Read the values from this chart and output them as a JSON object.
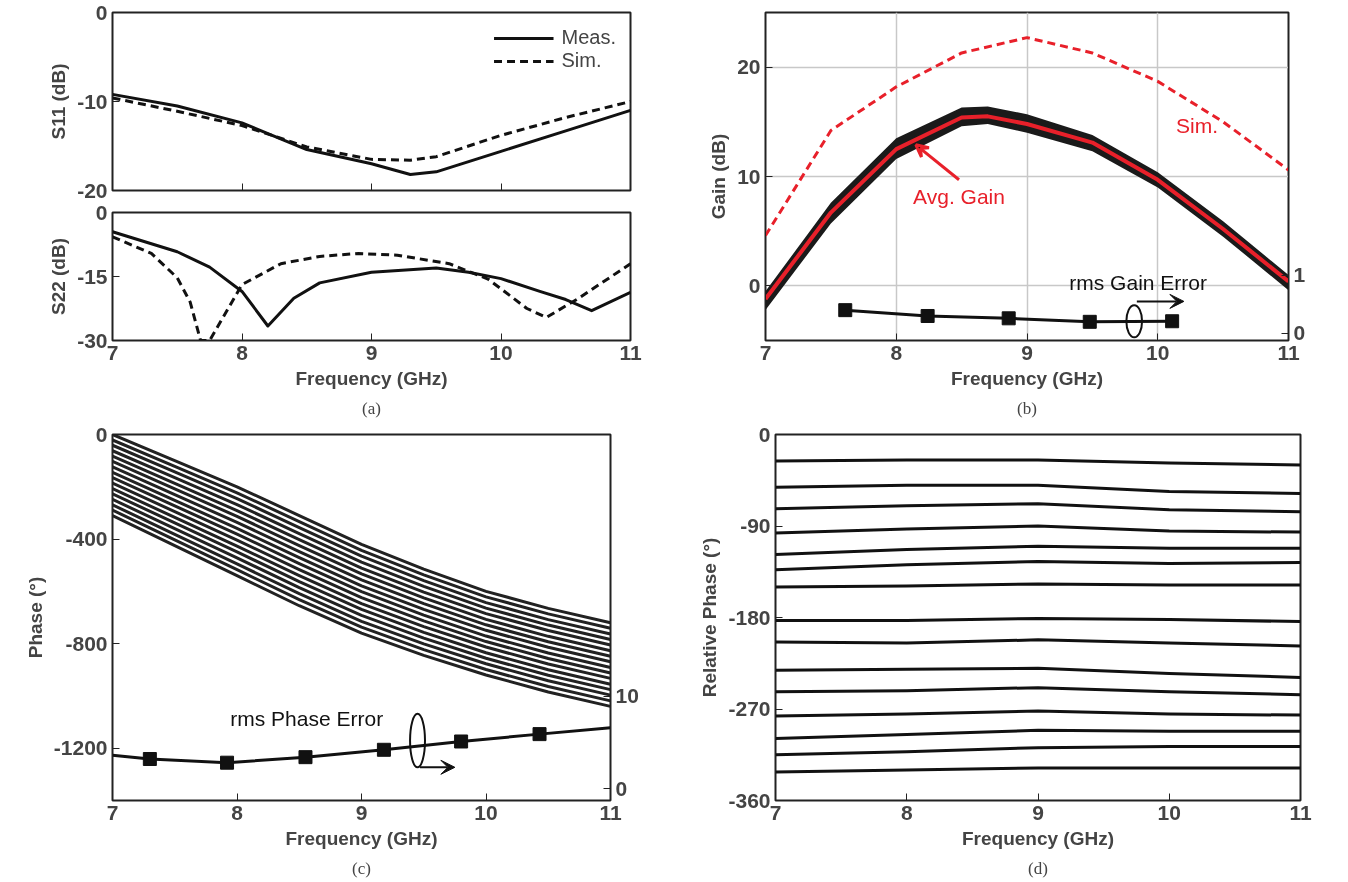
{
  "chart_data": [
    {
      "type": "line",
      "ylabel": "S11 (dB)",
      "xlim": [
        7,
        11
      ],
      "xticks": [
        7,
        8,
        9,
        10,
        11
      ],
      "ylim": [
        -20,
        0
      ],
      "yticks": [
        -20,
        -10,
        0
      ],
      "tick_labels": "y",
      "legend": "top right",
      "grid": false,
      "series": [
        {
          "name": "Meas.",
          "color": "#111111",
          "line_style": "solid",
          "x": [
            7,
            7.5,
            8,
            8.5,
            9,
            9.3,
            9.5,
            10,
            10.5,
            11
          ],
          "values": [
            -9.2,
            -10.5,
            -12.4,
            -15.4,
            -17.0,
            -18.2,
            -17.9,
            -15.6,
            -13.3,
            -11.0
          ]
        },
        {
          "name": "Sim.",
          "color": "#111111",
          "line_style": "dashed",
          "x": [
            7,
            7.5,
            8,
            8.5,
            9,
            9.3,
            9.5,
            10,
            10.5,
            11
          ],
          "values": [
            -9.6,
            -11.1,
            -12.7,
            -15.1,
            -16.5,
            -16.6,
            -16.2,
            -13.8,
            -11.8,
            -10.0
          ]
        }
      ]
    },
    {
      "type": "line",
      "xlabel": "Frequency (GHz)",
      "ylabel": "S22 (dB)",
      "xlim": [
        7,
        11
      ],
      "xticks": [
        7,
        8,
        9,
        10,
        11
      ],
      "ylim": [
        -30,
        0
      ],
      "yticks": [
        -30,
        -15,
        0
      ],
      "grid": false,
      "annotations": [
        "(a)"
      ],
      "series": [
        {
          "color": "#111111",
          "line_style": "solid",
          "x": [
            7,
            7.5,
            7.75,
            8,
            8.2,
            8.4,
            8.6,
            9,
            9.5,
            9.75,
            10,
            10.3,
            10.5,
            10.7,
            11
          ],
          "values": [
            -4.5,
            -9.2,
            -12.8,
            -18.5,
            -26.6,
            -20.1,
            -16.5,
            -14.0,
            -13.0,
            -14.0,
            -15.5,
            -18.5,
            -20.4,
            -23.0,
            -18.7
          ]
        },
        {
          "color": "#111111",
          "line_style": "dashed",
          "x": [
            7,
            7.3,
            7.5,
            7.6,
            7.68,
            7.75,
            8,
            8.3,
            8.6,
            8.9,
            9.2,
            9.6,
            9.9,
            10.2,
            10.35,
            10.6,
            11
          ],
          "values": [
            -5.7,
            -9.6,
            -15.3,
            -21.0,
            -30,
            -30,
            -16.9,
            -12.0,
            -10.3,
            -9.6,
            -10.0,
            -12.0,
            -15.6,
            -22.5,
            -24.6,
            -20.1,
            -12.0
          ]
        }
      ]
    },
    {
      "type": "line",
      "xlabel": "Frequency (GHz)",
      "ylabel": "Gain (dB)",
      "xlim": [
        7,
        11
      ],
      "xticks": [
        7,
        8,
        9,
        10,
        11
      ],
      "ylim": [
        -5,
        25
      ],
      "yticks": [
        0,
        10,
        20
      ],
      "y2lim": [
        -0.12,
        5.5
      ],
      "y2ticks": [
        0,
        1
      ],
      "grid": true,
      "annotations": [
        "Sim.",
        {
          "text": "Avg. Gain",
          "x": 8.15,
          "y": 12.9
        },
        "rms Gain Error",
        "(b)"
      ],
      "series": [
        {
          "color": "#e8202a",
          "line_style": "dashed",
          "x": [
            7,
            7.5,
            8,
            8.5,
            9,
            9.5,
            10,
            10.5,
            11
          ],
          "values": [
            4.6,
            14.2,
            18.2,
            21.3,
            22.7,
            21.3,
            18.7,
            15.0,
            10.6
          ]
        },
        {
          "color": "#e8202a",
          "line_style": "solid",
          "x": [
            7,
            7.5,
            8,
            8.5,
            8.7,
            9,
            9.5,
            10,
            10.5,
            11
          ],
          "values": [
            -1.2,
            6.7,
            12.5,
            15.4,
            15.5,
            14.8,
            13.1,
            9.7,
            5.2,
            0.4
          ],
          "lower": [
            -2.2,
            5.7,
            11.6,
            14.6,
            14.8,
            14.0,
            12.3,
            9.0,
            4.5,
            -0.4
          ],
          "upper": [
            -0.5,
            7.6,
            13.5,
            16.3,
            16.4,
            15.7,
            13.8,
            10.4,
            5.9,
            1.0
          ]
        },
        {
          "color": "#111111",
          "line_style": "solid",
          "marker": "square",
          "axis": "y2",
          "x": [
            7.61,
            8.24,
            8.86,
            9.48,
            10.11
          ],
          "values": [
            0.4,
            0.3,
            0.26,
            0.2,
            0.21
          ]
        }
      ]
    },
    {
      "type": "line",
      "xlabel": "Frequency (GHz)",
      "ylabel": "Phase (°)",
      "xlim": [
        7,
        11
      ],
      "xticks": [
        7,
        8,
        9,
        10,
        11
      ],
      "ylim": [
        -1400,
        0
      ],
      "yticks": [
        -1200,
        -800,
        -400,
        0
      ],
      "y2lim": [
        -1.3,
        38.4
      ],
      "y2ticks": [
        0,
        10
      ],
      "grid": false,
      "annotations": [
        "rms Phase Error",
        "(c)"
      ],
      "x": [
        7,
        7.5,
        8,
        8.5,
        9,
        9.5,
        10,
        10.5,
        11
      ],
      "series": [
        {
          "color": "#222222",
          "values": [
            0,
            -100,
            -200,
            -310,
            -420,
            -515,
            -600,
            -665,
            -720
          ]
        },
        {
          "color": "#222222",
          "values": [
            -21,
            -122,
            -223,
            -333,
            -443,
            -537,
            -621,
            -686,
            -741
          ]
        },
        {
          "color": "#222222",
          "values": [
            -41,
            -143,
            -245,
            -356,
            -465,
            -559,
            -643,
            -708,
            -763
          ]
        },
        {
          "color": "#222222",
          "values": [
            -62,
            -165,
            -268,
            -379,
            -488,
            -581,
            -664,
            -729,
            -784
          ]
        },
        {
          "color": "#222222",
          "values": [
            -83,
            -187,
            -291,
            -402,
            -511,
            -603,
            -685,
            -750,
            -805
          ]
        },
        {
          "color": "#222222",
          "values": [
            -103,
            -208,
            -313,
            -425,
            -533,
            -625,
            -707,
            -772,
            -827
          ]
        },
        {
          "color": "#222222",
          "values": [
            -124,
            -230,
            -336,
            -448,
            -556,
            -647,
            -728,
            -793,
            -848
          ]
        },
        {
          "color": "#222222",
          "values": [
            -145,
            -252,
            -359,
            -471,
            -579,
            -669,
            -749,
            -814,
            -869
          ]
        },
        {
          "color": "#222222",
          "values": [
            -165,
            -273,
            -381,
            -494,
            -601,
            -691,
            -771,
            -836,
            -891
          ]
        },
        {
          "color": "#222222",
          "values": [
            -186,
            -295,
            -404,
            -517,
            -624,
            -713,
            -792,
            -857,
            -912
          ]
        },
        {
          "color": "#222222",
          "values": [
            -207,
            -317,
            -427,
            -540,
            -647,
            -735,
            -813,
            -878,
            -933
          ]
        },
        {
          "color": "#222222",
          "values": [
            -227,
            -338,
            -449,
            -563,
            -669,
            -757,
            -835,
            -900,
            -955
          ]
        },
        {
          "color": "#222222",
          "values": [
            -248,
            -360,
            -472,
            -586,
            -692,
            -779,
            -856,
            -921,
            -976
          ]
        },
        {
          "color": "#222222",
          "values": [
            -269,
            -382,
            -495,
            -609,
            -715,
            -801,
            -877,
            -942,
            -997
          ]
        },
        {
          "color": "#222222",
          "values": [
            -289,
            -403,
            -517,
            -632,
            -737,
            -823,
            -899,
            -964,
            -1019
          ]
        },
        {
          "color": "#222222",
          "values": [
            -310,
            -425,
            -540,
            -655,
            -760,
            -845,
            -920,
            -985,
            -1040
          ]
        },
        {
          "color": "#111111",
          "axis": "y2",
          "x": [
            7,
            7.3,
            7.92,
            8.55,
            9.18,
            9.8,
            10.43,
            11
          ],
          "values": [
            3.6,
            3.2,
            2.8,
            3.4,
            4.2,
            5.1,
            5.9,
            6.6
          ]
        },
        {
          "color": "#111111",
          "type": "scatter",
          "marker": "square",
          "axis": "y2",
          "x": [
            7.3,
            7.92,
            8.55,
            9.18,
            9.8,
            10.43
          ],
          "values": [
            3.2,
            2.8,
            3.4,
            4.2,
            5.1,
            5.9
          ]
        }
      ]
    },
    {
      "type": "line",
      "xlabel": "Frequency (GHz)",
      "ylabel": "Relative Phase (°)",
      "xlim": [
        7,
        11
      ],
      "xticks": [
        7,
        8,
        9,
        10,
        11
      ],
      "ylim": [
        -360,
        0
      ],
      "yticks": [
        -360,
        -270,
        -180,
        -90,
        0
      ],
      "grid": false,
      "annotations": [
        "(d)"
      ],
      "x": [
        7,
        8,
        9,
        10,
        11
      ],
      "series": [
        {
          "color": "#111111",
          "values": [
            -26,
            -25,
            -25,
            -28,
            -30
          ]
        },
        {
          "color": "#111111",
          "values": [
            -52,
            -50,
            -50,
            -56,
            -58
          ]
        },
        {
          "color": "#111111",
          "values": [
            -73,
            -70,
            -68,
            -74,
            -76
          ]
        },
        {
          "color": "#111111",
          "values": [
            -97,
            -93,
            -90,
            -95,
            -96
          ]
        },
        {
          "color": "#111111",
          "values": [
            -118,
            -113,
            -110,
            -112,
            -112
          ]
        },
        {
          "color": "#111111",
          "values": [
            -133,
            -128,
            -125,
            -127,
            -126
          ]
        },
        {
          "color": "#111111",
          "values": [
            -150,
            -149,
            -147,
            -148,
            -148
          ]
        },
        {
          "color": "#111111",
          "values": [
            -183,
            -183,
            -181,
            -182,
            -184
          ]
        },
        {
          "color": "#111111",
          "values": [
            -204,
            -205,
            -202,
            -205,
            -208
          ]
        },
        {
          "color": "#111111",
          "values": [
            -232,
            -231,
            -230,
            -235,
            -239
          ]
        },
        {
          "color": "#111111",
          "values": [
            -253,
            -252,
            -249,
            -253,
            -256
          ]
        },
        {
          "color": "#111111",
          "values": [
            -277,
            -275,
            -272,
            -275,
            -276
          ]
        },
        {
          "color": "#111111",
          "values": [
            -299,
            -295,
            -291,
            -292,
            -292
          ]
        },
        {
          "color": "#111111",
          "values": [
            -315,
            -312,
            -308,
            -307,
            -307
          ]
        },
        {
          "color": "#111111",
          "values": [
            -332,
            -330,
            -328,
            -328,
            -328
          ]
        }
      ]
    }
  ]
}
